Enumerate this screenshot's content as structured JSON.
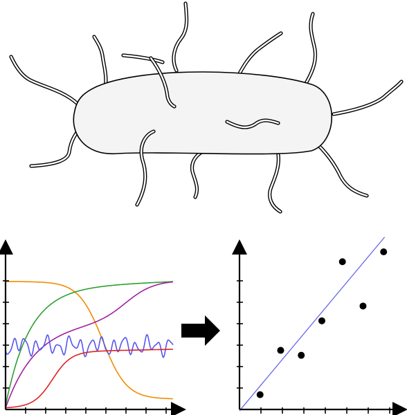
{
  "bacterium": {
    "flagella_count": 14
  },
  "growth_plot": {
    "curves": [
      {
        "color": "#f08c00",
        "shape": "sigmoid-decline"
      },
      {
        "color": "#2f9e2f",
        "shape": "saturating-rise"
      },
      {
        "color": "#a020a0",
        "shape": "double-rise"
      },
      {
        "color": "#5555ee",
        "shape": "noisy-flat"
      },
      {
        "color": "#e02020",
        "shape": "sigmoid-rise"
      }
    ],
    "x_ticks": 8,
    "y_ticks": 6
  },
  "arrow": {
    "color": "#000000"
  },
  "regression_plot": {
    "chart_data": {
      "type": "scatter",
      "x": [
        1,
        2,
        3,
        4,
        5,
        6,
        7
      ],
      "y": [
        0.6,
        2.4,
        2.2,
        3.6,
        6.0,
        4.2,
        6.4
      ],
      "xlim": [
        0,
        7.8
      ],
      "ylim": [
        0,
        6.6
      ],
      "fit_line": {
        "color": "#6666ee",
        "slope": 1.0,
        "intercept": -0.05
      }
    },
    "x_ticks": 7,
    "y_ticks": 6
  }
}
